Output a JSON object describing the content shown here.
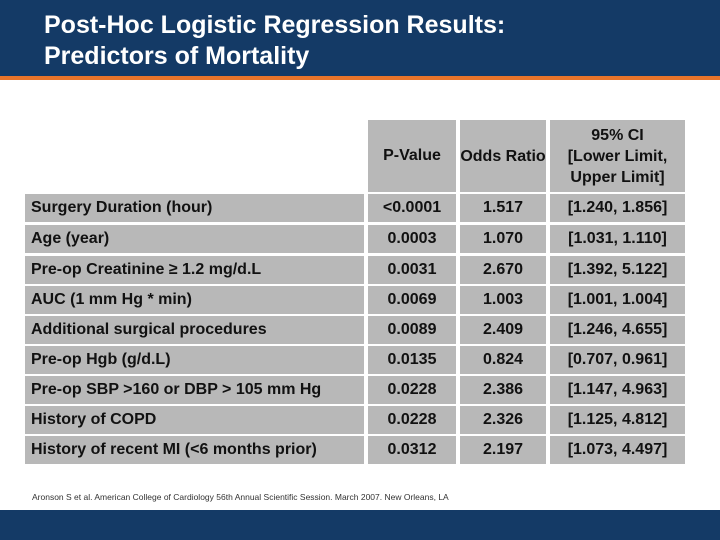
{
  "slide": {
    "title": "Post-Hoc Logistic Regression Results:\nPredictors of Mortality",
    "source": "Aronson S et al. American College of Cardiology 56th Annual Scientific Session. March 2007. New Orleans, LA",
    "colors": {
      "title_bar": "#143a66",
      "accent": "#e8742a",
      "table_fill": "#b8b8b8"
    }
  },
  "table": {
    "headers": {
      "p_value": "P-Value",
      "odds_ratio": "Odds Ratio",
      "ci_line1": "95% CI",
      "ci_line2": "[Lower Limit,",
      "ci_line3": "Upper Limit]"
    },
    "rows": [
      {
        "label": "Surgery Duration (hour)",
        "p_value": "<0.0001",
        "odds_ratio": "1.517",
        "ci": "[1.240, 1.856]"
      },
      {
        "label": "Age (year)",
        "p_value": "0.0003",
        "odds_ratio": "1.070",
        "ci": "[1.031, 1.110]"
      },
      {
        "label": "Pre-op Creatinine ≥ 1.2 mg/d.L",
        "p_value": "0.0031",
        "odds_ratio": "2.670",
        "ci": "[1.392, 5.122]"
      },
      {
        "label": "AUC (1 mm Hg * min)",
        "p_value": "0.0069",
        "odds_ratio": "1.003",
        "ci": "[1.001, 1.004]"
      },
      {
        "label": "Additional surgical procedures",
        "p_value": "0.0089",
        "odds_ratio": "2.409",
        "ci": "[1.246, 4.655]"
      },
      {
        "label": "Pre-op Hgb (g/d.L)",
        "p_value": "0.0135",
        "odds_ratio": "0.824",
        "ci": "[0.707, 0.961]"
      },
      {
        "label": "Pre-op SBP >160 or DBP > 105 mm Hg",
        "p_value": "0.0228",
        "odds_ratio": "2.386",
        "ci": "[1.147, 4.963]"
      },
      {
        "label": "History of COPD",
        "p_value": "0.0228",
        "odds_ratio": "2.326",
        "ci": "[1.125, 4.812]"
      },
      {
        "label": "History of recent MI (<6 months prior)",
        "p_value": "0.0312",
        "odds_ratio": "2.197",
        "ci": "[1.073, 4.497]"
      }
    ]
  }
}
